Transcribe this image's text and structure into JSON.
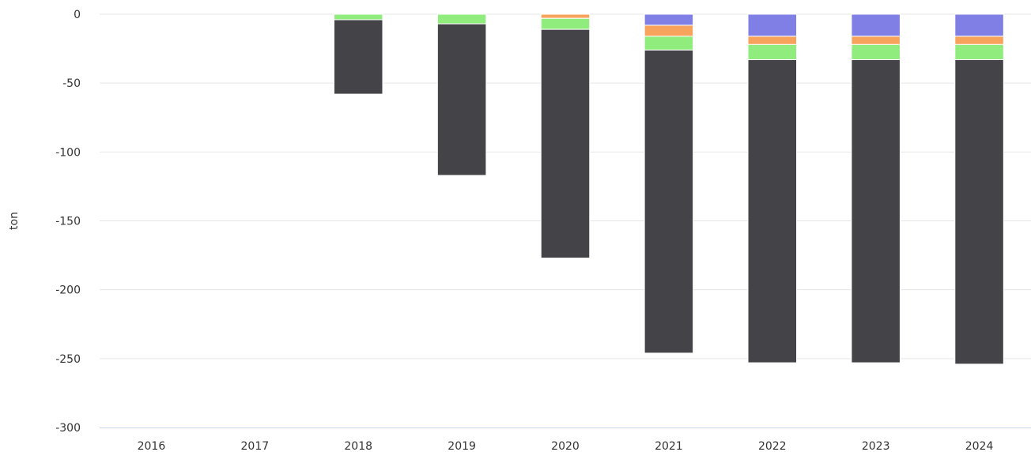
{
  "chart_data": {
    "type": "bar",
    "stacked": true,
    "title": "",
    "xlabel": "",
    "ylabel": "ton",
    "ylim": [
      -300,
      0
    ],
    "yticks": [
      0,
      -50,
      -100,
      -150,
      -200,
      -250,
      -300
    ],
    "grid": true,
    "categories": [
      "2016",
      "2017",
      "2018",
      "2019",
      "2020",
      "2021",
      "2022",
      "2023",
      "2024"
    ],
    "series": [
      {
        "color": "#7f7fe6",
        "values": [
          0,
          0,
          0,
          0,
          0,
          -8,
          -16,
          -16,
          -16
        ]
      },
      {
        "color": "#f7a35c",
        "values": [
          0,
          0,
          0,
          0,
          -3,
          -8,
          -6,
          -6,
          -6
        ]
      },
      {
        "color": "#90ed7d",
        "values": [
          0,
          0,
          -4,
          -7,
          -8,
          -10,
          -11,
          -11,
          -11
        ]
      },
      {
        "color": "#434348",
        "values": [
          0,
          0,
          -54,
          -110,
          -166,
          -220,
          -220,
          -220,
          -221
        ]
      }
    ]
  }
}
